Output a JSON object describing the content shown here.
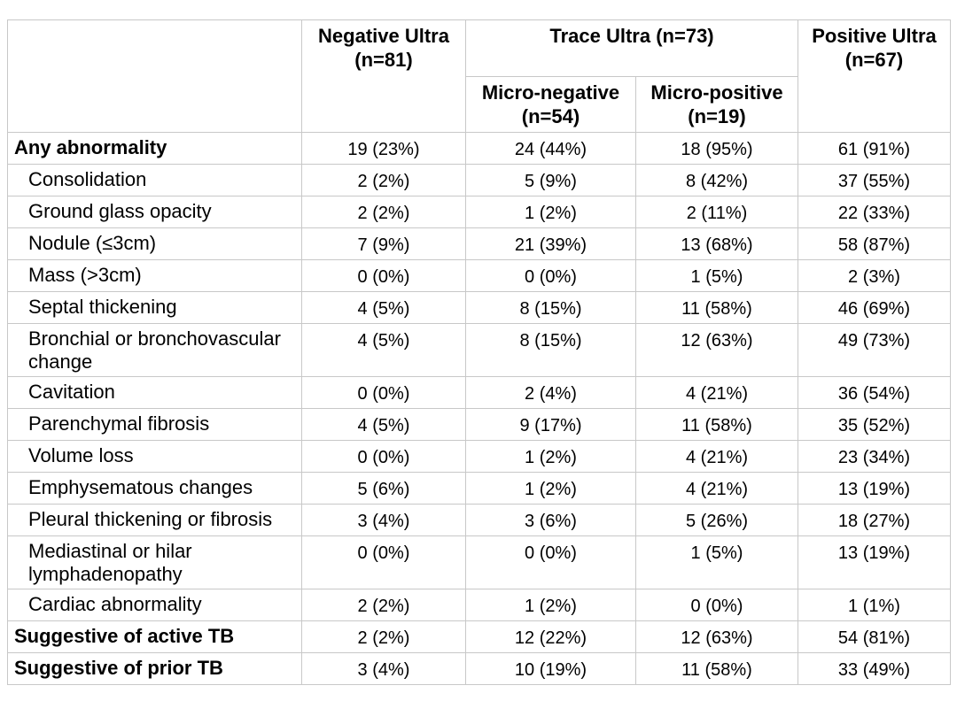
{
  "table": {
    "border_color": "#c8c8c8",
    "text_color": "#000000",
    "header": {
      "corner": "",
      "negative_ultra": {
        "line1": "Negative Ultra",
        "line2": "(n=81)"
      },
      "trace_ultra": {
        "label": "Trace Ultra (n=73)"
      },
      "micro_negative": {
        "line1": "Micro-negative",
        "line2": "(n=54)"
      },
      "micro_positive": {
        "line1": "Micro-positive",
        "line2": "(n=19)"
      },
      "positive_ultra": {
        "line1": "Positive Ultra",
        "line2": "(n=67)"
      }
    },
    "rows": [
      {
        "label": "Any abnormality",
        "style": "section",
        "values": [
          "19 (23%)",
          "24 (44%)",
          "18 (95%)",
          "61 (91%)"
        ]
      },
      {
        "label": "Consolidation",
        "style": "item",
        "values": [
          "2 (2%)",
          "5 (9%)",
          "8 (42%)",
          "37 (55%)"
        ]
      },
      {
        "label": "Ground glass opacity",
        "style": "item",
        "values": [
          "2 (2%)",
          "1 (2%)",
          "2 (11%)",
          "22 (33%)"
        ]
      },
      {
        "label": "Nodule (≤3cm)",
        "style": "item",
        "values": [
          "7 (9%)",
          "21 (39%)",
          "13 (68%)",
          "58 (87%)"
        ]
      },
      {
        "label": "Mass (>3cm)",
        "style": "item",
        "values": [
          "0 (0%)",
          "0 (0%)",
          "1 (5%)",
          "2 (3%)"
        ]
      },
      {
        "label": "Septal thickening",
        "style": "item",
        "values": [
          "4 (5%)",
          "8 (15%)",
          "11 (58%)",
          "46 (69%)"
        ]
      },
      {
        "label": "Bronchial or bronchovascular change",
        "style": "item",
        "values": [
          "4 (5%)",
          "8 (15%)",
          "12 (63%)",
          "49 (73%)"
        ]
      },
      {
        "label": "Cavitation",
        "style": "item",
        "values": [
          "0 (0%)",
          "2 (4%)",
          "4 (21%)",
          "36 (54%)"
        ]
      },
      {
        "label": "Parenchymal fibrosis",
        "style": "item",
        "values": [
          "4 (5%)",
          "9 (17%)",
          "11 (58%)",
          "35 (52%)"
        ]
      },
      {
        "label": "Volume loss",
        "style": "item",
        "values": [
          "0 (0%)",
          "1 (2%)",
          "4 (21%)",
          "23 (34%)"
        ]
      },
      {
        "label": "Emphysematous changes",
        "style": "item",
        "values": [
          "5 (6%)",
          "1 (2%)",
          "4 (21%)",
          "13 (19%)"
        ]
      },
      {
        "label": "Pleural thickening or fibrosis",
        "style": "item",
        "values": [
          "3 (4%)",
          "3 (6%)",
          "5 (26%)",
          "18 (27%)"
        ]
      },
      {
        "label": "Mediastinal or hilar lymphadenopathy",
        "style": "item",
        "values": [
          "0 (0%)",
          "0 (0%)",
          "1 (5%)",
          "13 (19%)"
        ]
      },
      {
        "label": "Cardiac abnormality",
        "style": "item",
        "values": [
          "2 (2%)",
          "1 (2%)",
          "0 (0%)",
          "1 (1%)"
        ]
      },
      {
        "label": "Suggestive of active TB",
        "style": "section",
        "values": [
          "2 (2%)",
          "12 (22%)",
          "12 (63%)",
          "54 (81%)"
        ]
      },
      {
        "label": "Suggestive of prior TB",
        "style": "section",
        "values": [
          "3 (4%)",
          "10 (19%)",
          "11 (58%)",
          "33 (49%)"
        ]
      }
    ]
  }
}
